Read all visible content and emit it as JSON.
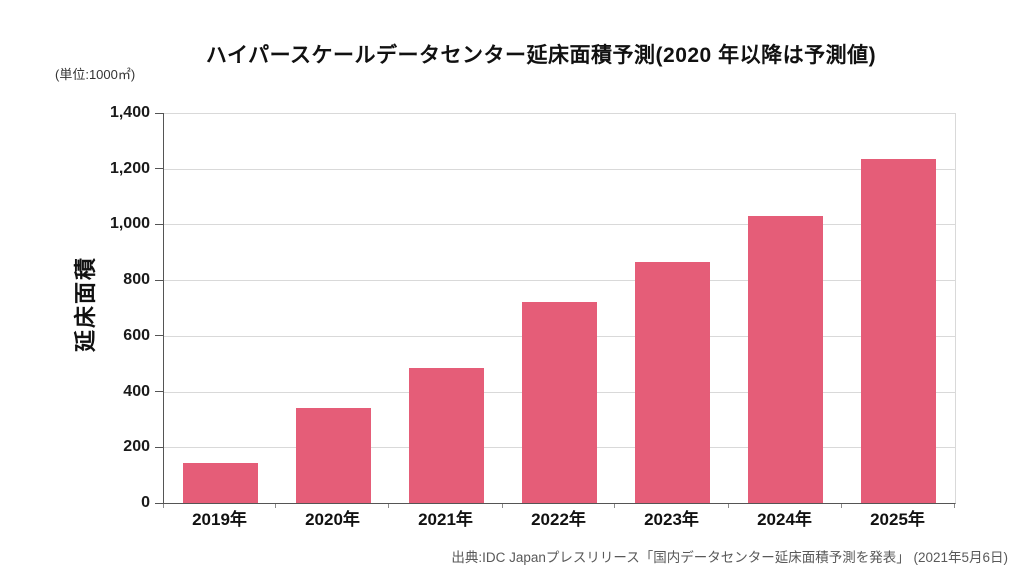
{
  "chart_data": {
    "type": "bar",
    "title": "ハイパースケールデータセンター延床面積予測(2020 年以降は予測値)",
    "unit_label": "(単位:1000㎡)",
    "ylabel": "延床面積",
    "xlabel": "",
    "categories": [
      "2019年",
      "2020年",
      "2021年",
      "2022年",
      "2023年",
      "2024年",
      "2025年"
    ],
    "values": [
      145,
      340,
      485,
      720,
      865,
      1030,
      1235
    ],
    "ylim": [
      0,
      1400
    ],
    "ytick_step": 200,
    "ytick_labels": [
      "0",
      "200",
      "400",
      "600",
      "800",
      "1,000",
      "1,200",
      "1,400"
    ],
    "grid": true,
    "legend": "none",
    "source": "出典:IDC Japanプレスリリース「国内データセンター延床面積予測を発表」 (2021年5月6日)",
    "colors": {
      "bar": "#e55d78",
      "gridline": "#d9d9d9",
      "axis": "#555555",
      "title_text": "#111111",
      "source_text": "#595959"
    }
  }
}
